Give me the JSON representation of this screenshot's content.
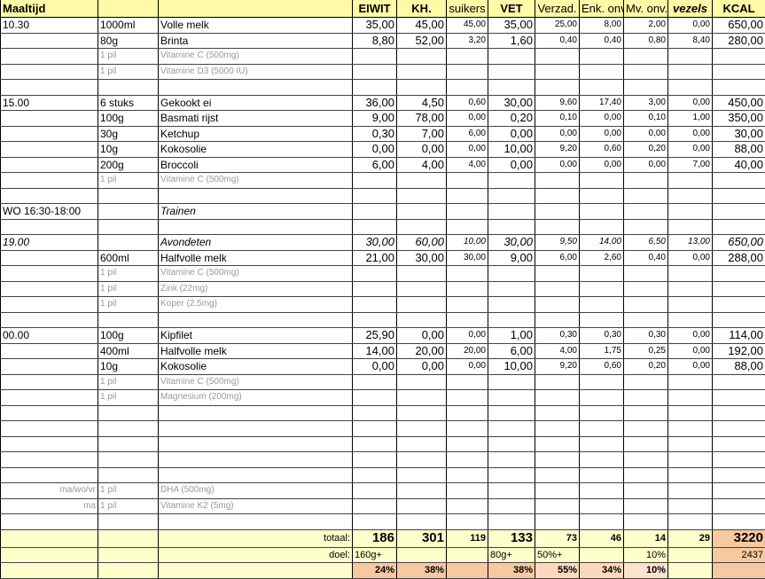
{
  "header": [
    "Maaltijd",
    "",
    "",
    "EIWIT",
    "KH.",
    "suikers",
    "VET",
    "Verzad.",
    "Enk. onv.",
    "Mv. onv.",
    "vezels",
    "KCAL"
  ],
  "rows": [
    {
      "type": "food",
      "cells": [
        "10.30",
        "1000ml",
        "Volle melk",
        "35,00",
        "45,00",
        "45,00",
        "35,00",
        "25,00",
        "8,00",
        "2,00",
        "0,00",
        "650,00"
      ]
    },
    {
      "type": "food",
      "cells": [
        "",
        "80g",
        "Brinta",
        "8,80",
        "52,00",
        "3,20",
        "1,60",
        "0,40",
        "0,40",
        "0,80",
        "8,40",
        "280,00"
      ]
    },
    {
      "type": "pill",
      "cells": [
        "",
        "1 pil",
        "Vitamine C (500mg)",
        "",
        "",
        "",
        "",
        "",
        "",
        "",
        "",
        ""
      ]
    },
    {
      "type": "pill",
      "cells": [
        "",
        "1 pil",
        "Vitamine D3 (5000 IU)",
        "",
        "",
        "",
        "",
        "",
        "",
        "",
        "",
        ""
      ]
    },
    {
      "type": "food",
      "cells": [
        "",
        "",
        "",
        "",
        "",
        "",
        "",
        "",
        "",
        "",
        "",
        ""
      ]
    },
    {
      "type": "food",
      "cells": [
        "15.00",
        "6 stuks",
        "Gekookt ei",
        "36,00",
        "4,50",
        "0,60",
        "30,00",
        "9,60",
        "17,40",
        "3,00",
        "0,00",
        "450,00"
      ]
    },
    {
      "type": "food",
      "cells": [
        "",
        "100g",
        "Basmati rijst",
        "9,00",
        "78,00",
        "0,00",
        "0,20",
        "0,10",
        "0,00",
        "0,10",
        "1,00",
        "350,00"
      ]
    },
    {
      "type": "food",
      "cells": [
        "",
        "30g",
        "Ketchup",
        "0,30",
        "7,00",
        "6,00",
        "0,00",
        "0,00",
        "0,00",
        "0,00",
        "0,00",
        "30,00"
      ]
    },
    {
      "type": "food",
      "cells": [
        "",
        "10g",
        "Kokosolie",
        "0,00",
        "0,00",
        "0,00",
        "10,00",
        "9,20",
        "0,60",
        "0,20",
        "0,00",
        "88,00"
      ]
    },
    {
      "type": "food",
      "cells": [
        "",
        "200g",
        "Broccoli",
        "6,00",
        "4,00",
        "4,00",
        "0,00",
        "0,00",
        "0,00",
        "0,00",
        "7,00",
        "40,00"
      ]
    },
    {
      "type": "pill",
      "cells": [
        "",
        "1 pil",
        "Vitamine C (500mg)",
        "",
        "",
        "",
        "",
        "",
        "",
        "",
        "",
        ""
      ]
    },
    {
      "type": "food",
      "cells": [
        "",
        "",
        "",
        "",
        "",
        "",
        "",
        "",
        "",
        "",
        "",
        ""
      ]
    },
    {
      "type": "train",
      "cells": [
        "WO 16:30-18:00",
        "",
        "Trainen",
        "",
        "",
        "",
        "",
        "",
        "",
        "",
        "",
        ""
      ]
    },
    {
      "type": "food",
      "cells": [
        "",
        "",
        "",
        "",
        "",
        "",
        "",
        "",
        "",
        "",
        "",
        ""
      ]
    },
    {
      "type": "ital",
      "cells": [
        "19.00",
        "",
        "Avondeten",
        "30,00",
        "60,00",
        "10,00",
        "30,00",
        "9,50",
        "14,00",
        "6,50",
        "13,00",
        "650,00"
      ]
    },
    {
      "type": "food",
      "cells": [
        "",
        "600ml",
        "Halfvolle melk",
        "21,00",
        "30,00",
        "30,00",
        "9,00",
        "6,00",
        "2,60",
        "0,40",
        "0,00",
        "288,00"
      ]
    },
    {
      "type": "pill",
      "cells": [
        "",
        "1 pil",
        "Vitamine C (500mg)",
        "",
        "",
        "",
        "",
        "",
        "",
        "",
        "",
        ""
      ]
    },
    {
      "type": "pill",
      "cells": [
        "",
        "1 pil",
        "Zink (22mg)",
        "",
        "",
        "",
        "",
        "",
        "",
        "",
        "",
        ""
      ]
    },
    {
      "type": "pill",
      "cells": [
        "",
        "1 pil",
        "Koper (2.5mg)",
        "",
        "",
        "",
        "",
        "",
        "",
        "",
        "",
        ""
      ]
    },
    {
      "type": "food",
      "cells": [
        "",
        "",
        "",
        "",
        "",
        "",
        "",
        "",
        "",
        "",
        "",
        ""
      ]
    },
    {
      "type": "food",
      "cells": [
        "00.00",
        "100g",
        "Kipfilet",
        "25,90",
        "0,00",
        "0,00",
        "1,00",
        "0,30",
        "0,30",
        "0,30",
        "0,00",
        "114,00"
      ]
    },
    {
      "type": "food",
      "cells": [
        "",
        "400ml",
        "Halfvolle melk",
        "14,00",
        "20,00",
        "20,00",
        "6,00",
        "4,00",
        "1,75",
        "0,25",
        "0,00",
        "192,00"
      ]
    },
    {
      "type": "food",
      "cells": [
        "",
        "10g",
        "Kokosolie",
        "0,00",
        "0,00",
        "0,00",
        "10,00",
        "9,20",
        "0,60",
        "0,20",
        "0,00",
        "88,00"
      ]
    },
    {
      "type": "pill",
      "cells": [
        "",
        "1 pil",
        "Vitamine C (500mg)",
        "",
        "",
        "",
        "",
        "",
        "",
        "",
        "",
        ""
      ]
    },
    {
      "type": "pill",
      "cells": [
        "",
        "1 pil",
        "Magnesium (200mg)",
        "",
        "",
        "",
        "",
        "",
        "",
        "",
        "",
        ""
      ]
    },
    {
      "type": "food",
      "cells": [
        "",
        "",
        "",
        "",
        "",
        "",
        "",
        "",
        "",
        "",
        "",
        ""
      ]
    },
    {
      "type": "food",
      "cells": [
        "",
        "",
        "",
        "",
        "",
        "",
        "",
        "",
        "",
        "",
        "",
        ""
      ]
    },
    {
      "type": "food",
      "cells": [
        "",
        "",
        "",
        "",
        "",
        "",
        "",
        "",
        "",
        "",
        "",
        ""
      ]
    },
    {
      "type": "food",
      "cells": [
        "",
        "",
        "",
        "",
        "",
        "",
        "",
        "",
        "",
        "",
        "",
        ""
      ]
    },
    {
      "type": "food",
      "cells": [
        "",
        "",
        "",
        "",
        "",
        "",
        "",
        "",
        "",
        "",
        "",
        ""
      ]
    },
    {
      "type": "pillr",
      "cells": [
        "ma/wo/vr",
        "1 pil",
        "DHA (500mg)",
        "",
        "",
        "",
        "",
        "",
        "",
        "",
        "",
        ""
      ]
    },
    {
      "type": "pillr",
      "cells": [
        "ma",
        "1 pil",
        "Vitamine K2 (5mg)",
        "",
        "",
        "",
        "",
        "",
        "",
        "",
        "",
        ""
      ]
    },
    {
      "type": "food",
      "cells": [
        "",
        "",
        "",
        "",
        "",
        "",
        "",
        "",
        "",
        "",
        "",
        ""
      ]
    }
  ],
  "summary": {
    "totaal": [
      "",
      "",
      "totaal:",
      "186",
      "301",
      "119",
      "133",
      "73",
      "46",
      "14",
      "29",
      "3220"
    ],
    "doel": [
      "",
      "",
      "doel:",
      "160g+",
      "",
      "",
      "80g+",
      "50%+",
      "",
      "10%",
      "",
      "2437"
    ],
    "percent": [
      "",
      "",
      "",
      "24%",
      "38%",
      "",
      "38%",
      "55%",
      "34%",
      "10%",
      "",
      ""
    ]
  },
  "colors": {
    "header": "#fff9a8",
    "summary": "#ffffcc",
    "highlight": "#f8c8a0",
    "highlight_light": "#fad9c0",
    "highlight_lighter": "#fce3d0"
  }
}
